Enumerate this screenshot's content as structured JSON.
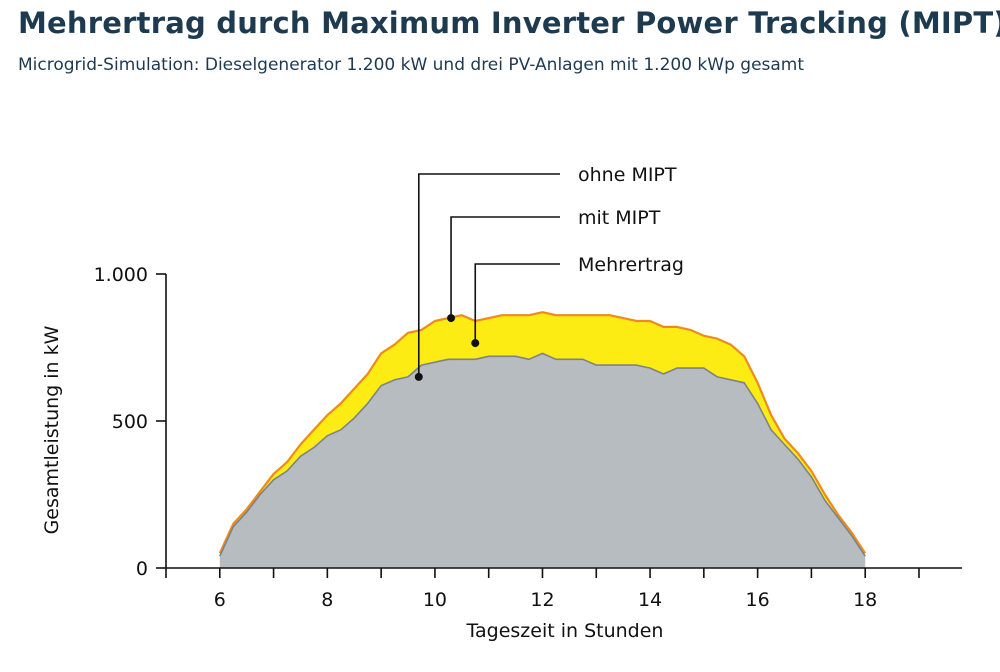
{
  "header": {
    "title": "Mehrertrag durch Maximum Inverter Power Tracking (MIPT)",
    "subtitle": "Microgrid-Simulation: Dieselgenerator 1.200 kW und drei PV-Anlagen mit 1.200 kWp gesamt"
  },
  "chart_data": {
    "type": "area",
    "xlabel": "Tageszeit in Stunden",
    "ylabel": "Gesamtleistung in kW",
    "xlim": [
      5,
      19.8
    ],
    "ylim": [
      0,
      1000
    ],
    "x_ticks": [
      6,
      8,
      10,
      12,
      14,
      16,
      18
    ],
    "x_minor_ticks": [
      5,
      7,
      9,
      11,
      13,
      15,
      17,
      19
    ],
    "y_ticks": [
      {
        "value": 0,
        "label": "0"
      },
      {
        "value": 500,
        "label": "500"
      },
      {
        "value": 1000,
        "label": "1.000"
      }
    ],
    "legend_placement": "callouts-top-center",
    "colors": {
      "ohne_fill": "#b7bcc0",
      "ohne_line": "#7d8388",
      "mit_line": "#ef8a1c",
      "mehrertrag_fill": "#fdec13"
    },
    "series": [
      {
        "name": "ohne MIPT",
        "x": [
          6.0,
          6.25,
          6.5,
          6.75,
          7.0,
          7.25,
          7.5,
          7.75,
          8.0,
          8.25,
          8.5,
          8.75,
          9.0,
          9.25,
          9.5,
          9.75,
          10.0,
          10.25,
          10.5,
          10.75,
          11.0,
          11.25,
          11.5,
          11.75,
          12.0,
          12.25,
          12.5,
          12.75,
          13.0,
          13.25,
          13.5,
          13.75,
          14.0,
          14.25,
          14.5,
          14.75,
          15.0,
          15.25,
          15.5,
          15.75,
          16.0,
          16.25,
          16.5,
          16.75,
          17.0,
          17.25,
          17.5,
          17.75,
          18.0
        ],
        "values": [
          40,
          140,
          190,
          250,
          300,
          330,
          380,
          410,
          450,
          470,
          510,
          560,
          620,
          640,
          650,
          690,
          700,
          710,
          710,
          710,
          720,
          720,
          720,
          710,
          730,
          710,
          710,
          710,
          690,
          690,
          690,
          690,
          680,
          660,
          680,
          680,
          680,
          650,
          640,
          630,
          560,
          470,
          420,
          370,
          310,
          230,
          170,
          110,
          40
        ]
      },
      {
        "name": "mit MIPT",
        "x": [
          6.0,
          6.25,
          6.5,
          6.75,
          7.0,
          7.25,
          7.5,
          7.75,
          8.0,
          8.25,
          8.5,
          8.75,
          9.0,
          9.25,
          9.5,
          9.75,
          10.0,
          10.25,
          10.5,
          10.75,
          11.0,
          11.25,
          11.5,
          11.75,
          12.0,
          12.25,
          12.5,
          12.75,
          13.0,
          13.25,
          13.5,
          13.75,
          14.0,
          14.25,
          14.5,
          14.75,
          15.0,
          15.25,
          15.5,
          15.75,
          16.0,
          16.25,
          16.5,
          16.75,
          17.0,
          17.25,
          17.5,
          17.75,
          18.0
        ],
        "values": [
          50,
          150,
          200,
          260,
          320,
          360,
          420,
          470,
          520,
          560,
          610,
          660,
          730,
          760,
          800,
          810,
          840,
          850,
          860,
          840,
          850,
          860,
          860,
          860,
          870,
          860,
          860,
          860,
          860,
          860,
          850,
          840,
          840,
          820,
          820,
          810,
          790,
          780,
          760,
          720,
          630,
          520,
          440,
          390,
          330,
          250,
          180,
          120,
          50
        ]
      }
    ],
    "annotations": [
      {
        "label": "ohne MIPT",
        "x": 9.7,
        "y": 650
      },
      {
        "label": "mit MIPT",
        "x": 10.3,
        "y": 850
      },
      {
        "label": "Mehrertrag",
        "x": 10.75,
        "y": 765
      }
    ]
  }
}
